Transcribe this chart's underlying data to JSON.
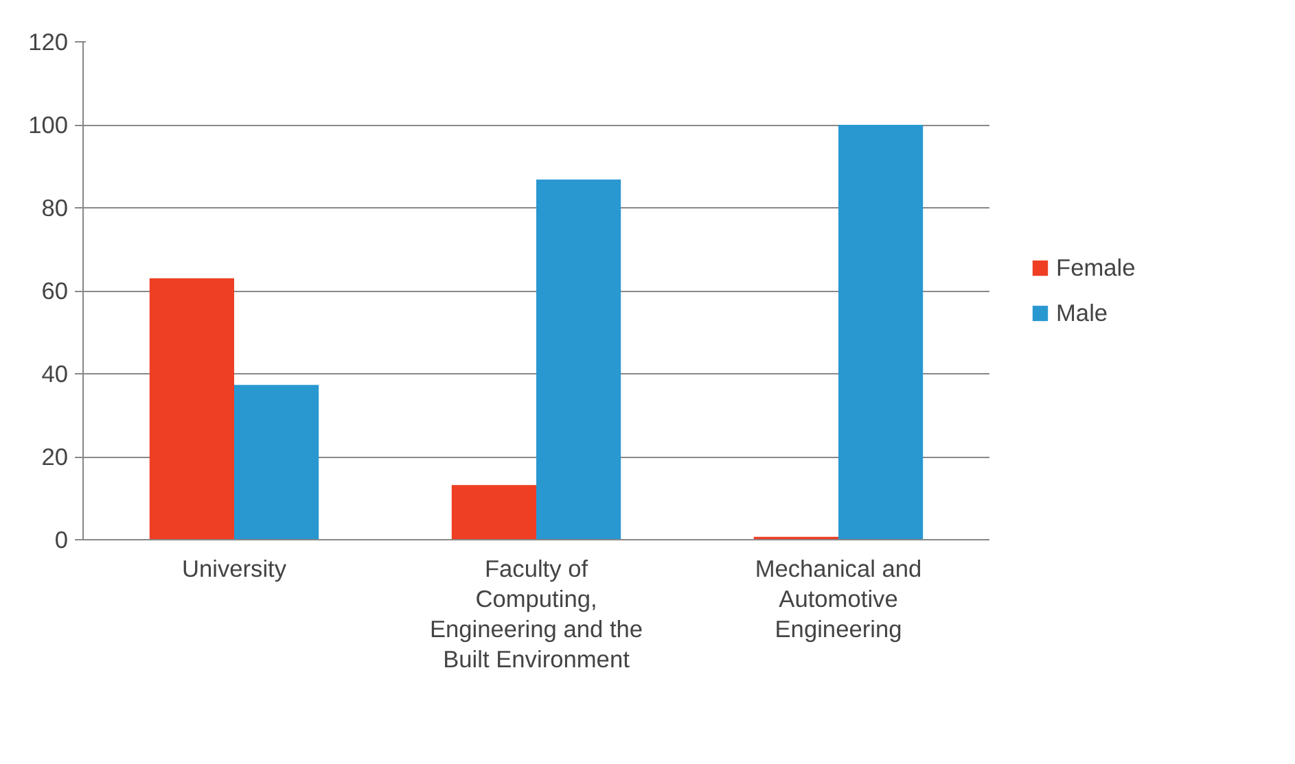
{
  "chart_data": {
    "type": "bar",
    "categories": [
      "University",
      "Faculty of Computing, Engineering and the Built Environment",
      "Mechanical and Automotive Engineering"
    ],
    "series": [
      {
        "name": "Female",
        "color": "#ee3e24",
        "values": [
          63,
          13.2,
          0.7
        ]
      },
      {
        "name": "Male",
        "color": "#2998d1",
        "values": [
          37.3,
          86.8,
          100
        ]
      }
    ],
    "ylim": [
      0,
      120
    ],
    "yticks": [
      0,
      20,
      40,
      60,
      80,
      100,
      120
    ],
    "grid": "y",
    "legend": "right"
  }
}
